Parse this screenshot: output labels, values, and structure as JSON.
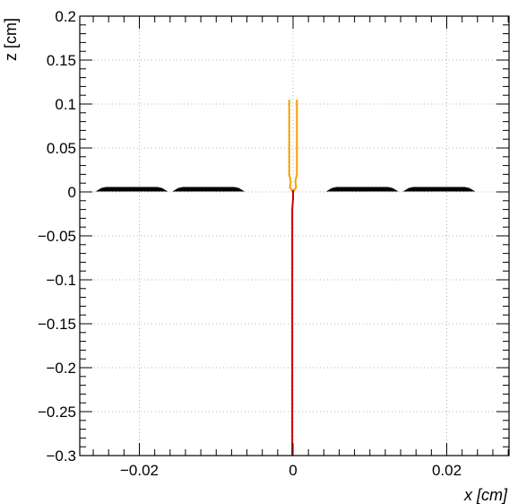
{
  "chart_data": {
    "type": "line",
    "xlabel": "x [cm]",
    "ylabel": "z [cm]",
    "xlim": [
      -0.0285,
      0.0285
    ],
    "ylim": [
      -0.3,
      0.2
    ],
    "grid": true,
    "x_ticks": [
      {
        "value": -0.02,
        "label": "−0.02"
      },
      {
        "value": 0,
        "label": "0"
      },
      {
        "value": 0.02,
        "label": "0.02"
      }
    ],
    "y_ticks": [
      {
        "value": 0.2,
        "label": "0.2"
      },
      {
        "value": 0.15,
        "label": "0.15"
      },
      {
        "value": 0.1,
        "label": "0.1"
      },
      {
        "value": 0.05,
        "label": "0.05"
      },
      {
        "value": 0,
        "label": "0"
      },
      {
        "value": -0.05,
        "label": "−0.05"
      },
      {
        "value": -0.1,
        "label": "−0.1"
      },
      {
        "value": -0.15,
        "label": "−0.15"
      },
      {
        "value": -0.2,
        "label": "−0.2"
      },
      {
        "value": -0.25,
        "label": "−0.25"
      },
      {
        "value": -0.3,
        "label": "−0.3"
      }
    ],
    "electrodes": [
      {
        "x0": -0.0255,
        "x1": -0.0165,
        "z": 0.0025
      },
      {
        "x0": -0.0155,
        "x1": -0.0065,
        "z": 0.0025
      },
      {
        "x0": 0.0045,
        "x1": 0.0135,
        "z": 0.0025
      },
      {
        "x0": 0.0145,
        "x1": 0.0235,
        "z": 0.0025
      }
    ],
    "series": [
      {
        "color": "#f0a000",
        "x": [
          -0.0005,
          -0.0005,
          -0.0003,
          -0.0004,
          0.0,
          0.0004,
          0.0003,
          0.0005,
          0.0005
        ],
        "z": [
          0.105,
          0.02,
          0.012,
          0.005,
          0.0,
          0.005,
          0.012,
          0.02,
          0.105
        ]
      },
      {
        "color": "#cc0000",
        "x": [
          -0.0001,
          -0.0001,
          0.0,
          0.0
        ],
        "z": [
          -0.3,
          -0.02,
          -0.008,
          0.002
        ]
      }
    ]
  }
}
